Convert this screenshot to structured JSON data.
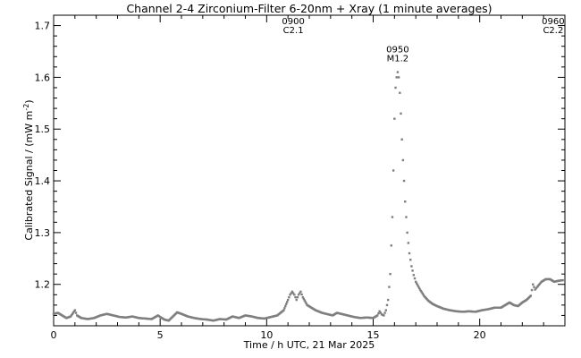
{
  "chart_data": {
    "type": "scatter",
    "title": "Channel 2-4   Zirconium-Filter   6-20nm + Xray   (1 minute averages)",
    "xlabel": "Time / h UTC, 21 Mar 2025",
    "ylabel": "Calibrated Signal / (mW m",
    "ylabel_sup": "-2",
    "ylabel_close": ")",
    "xlim": [
      0,
      24
    ],
    "ylim": [
      1.12,
      1.72
    ],
    "xticks": [
      0,
      5,
      10,
      15,
      20
    ],
    "xtick_labels": [
      "0",
      "5",
      "10",
      "15",
      "20"
    ],
    "yticks": [
      1.2,
      1.3,
      1.4,
      1.5,
      1.6,
      1.7
    ],
    "ytick_labels": [
      "1.2",
      "1.3",
      "1.4",
      "1.5",
      "1.6",
      "1.7"
    ],
    "grid": false,
    "marker_color": "#7f7f7f",
    "series": [
      {
        "points": [
          [
            0.0,
            1.143
          ],
          [
            0.2,
            1.145
          ],
          [
            0.4,
            1.14
          ],
          [
            0.6,
            1.135
          ],
          [
            0.8,
            1.138
          ],
          [
            1.0,
            1.15
          ],
          [
            1.1,
            1.14
          ],
          [
            1.3,
            1.135
          ],
          [
            1.6,
            1.133
          ],
          [
            1.9,
            1.135
          ],
          [
            2.2,
            1.14
          ],
          [
            2.5,
            1.143
          ],
          [
            2.8,
            1.14
          ],
          [
            3.1,
            1.137
          ],
          [
            3.4,
            1.136
          ],
          [
            3.7,
            1.138
          ],
          [
            4.0,
            1.135
          ],
          [
            4.3,
            1.134
          ],
          [
            4.6,
            1.133
          ],
          [
            4.9,
            1.14
          ],
          [
            5.0,
            1.137
          ],
          [
            5.2,
            1.132
          ],
          [
            5.4,
            1.13
          ],
          [
            5.6,
            1.138
          ],
          [
            5.8,
            1.146
          ],
          [
            6.0,
            1.143
          ],
          [
            6.3,
            1.138
          ],
          [
            6.6,
            1.135
          ],
          [
            6.9,
            1.133
          ],
          [
            7.2,
            1.132
          ],
          [
            7.5,
            1.13
          ],
          [
            7.8,
            1.133
          ],
          [
            8.1,
            1.132
          ],
          [
            8.4,
            1.138
          ],
          [
            8.7,
            1.135
          ],
          [
            9.0,
            1.14
          ],
          [
            9.3,
            1.138
          ],
          [
            9.6,
            1.135
          ],
          [
            9.9,
            1.134
          ],
          [
            10.2,
            1.137
          ],
          [
            10.5,
            1.14
          ],
          [
            10.8,
            1.15
          ],
          [
            11.0,
            1.17
          ],
          [
            11.1,
            1.18
          ],
          [
            11.2,
            1.186
          ],
          [
            11.3,
            1.18
          ],
          [
            11.4,
            1.17
          ],
          [
            11.5,
            1.18
          ],
          [
            11.6,
            1.186
          ],
          [
            11.7,
            1.175
          ],
          [
            11.9,
            1.16
          ],
          [
            12.1,
            1.155
          ],
          [
            12.3,
            1.15
          ],
          [
            12.6,
            1.145
          ],
          [
            12.9,
            1.142
          ],
          [
            13.1,
            1.14
          ],
          [
            13.3,
            1.145
          ],
          [
            13.5,
            1.143
          ],
          [
            13.8,
            1.14
          ],
          [
            14.1,
            1.137
          ],
          [
            14.4,
            1.135
          ],
          [
            14.7,
            1.136
          ],
          [
            15.0,
            1.135
          ],
          [
            15.2,
            1.14
          ],
          [
            15.3,
            1.148
          ],
          [
            15.4,
            1.142
          ],
          [
            15.5,
            1.14
          ],
          [
            15.6,
            1.15
          ],
          [
            15.7,
            1.17
          ],
          [
            15.8,
            1.22
          ],
          [
            15.9,
            1.33
          ],
          [
            15.95,
            1.42
          ],
          [
            16.0,
            1.52
          ],
          [
            16.05,
            1.58
          ],
          [
            16.1,
            1.6
          ],
          [
            16.15,
            1.61
          ],
          [
            16.2,
            1.6
          ],
          [
            16.25,
            1.57
          ],
          [
            16.3,
            1.53
          ],
          [
            16.35,
            1.48
          ],
          [
            16.4,
            1.44
          ],
          [
            16.45,
            1.4
          ],
          [
            16.5,
            1.36
          ],
          [
            16.6,
            1.3
          ],
          [
            16.7,
            1.26
          ],
          [
            16.8,
            1.235
          ],
          [
            16.9,
            1.218
          ],
          [
            17.0,
            1.205
          ],
          [
            17.2,
            1.19
          ],
          [
            17.4,
            1.177
          ],
          [
            17.6,
            1.168
          ],
          [
            17.8,
            1.162
          ],
          [
            18.0,
            1.158
          ],
          [
            18.3,
            1.153
          ],
          [
            18.6,
            1.15
          ],
          [
            18.9,
            1.148
          ],
          [
            19.2,
            1.147
          ],
          [
            19.5,
            1.148
          ],
          [
            19.8,
            1.147
          ],
          [
            20.1,
            1.15
          ],
          [
            20.4,
            1.152
          ],
          [
            20.7,
            1.155
          ],
          [
            21.0,
            1.155
          ],
          [
            21.2,
            1.16
          ],
          [
            21.4,
            1.165
          ],
          [
            21.6,
            1.16
          ],
          [
            21.8,
            1.158
          ],
          [
            22.0,
            1.165
          ],
          [
            22.2,
            1.17
          ],
          [
            22.4,
            1.178
          ],
          [
            22.5,
            1.2
          ],
          [
            22.6,
            1.19
          ],
          [
            22.7,
            1.195
          ],
          [
            22.9,
            1.205
          ],
          [
            23.1,
            1.21
          ],
          [
            23.3,
            1.21
          ],
          [
            23.5,
            1.205
          ],
          [
            23.7,
            1.207
          ],
          [
            23.9,
            1.208
          ]
        ]
      }
    ],
    "annotations": [
      {
        "x": 11.25,
        "time": "0900",
        "class": "C2.1",
        "y": 1.703
      },
      {
        "x": 16.15,
        "time": "0950",
        "class": "M1.2",
        "y": 1.648
      },
      {
        "x": 23.45,
        "time": "0960",
        "class": "C2.2",
        "y": 1.703
      }
    ]
  }
}
